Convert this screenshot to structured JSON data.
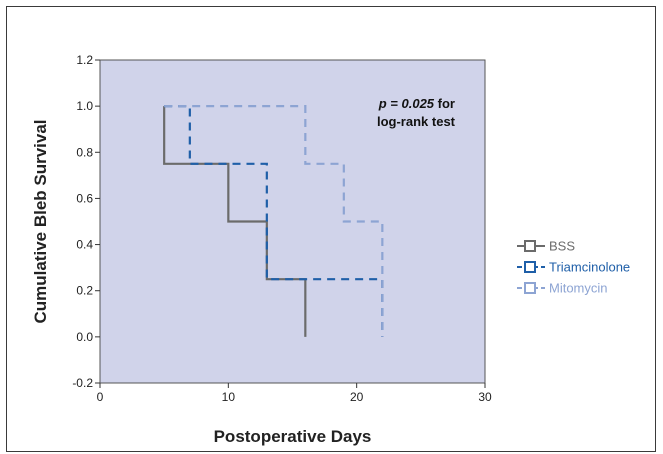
{
  "chart_data": {
    "type": "line",
    "step": true,
    "xlabel": "Postoperative Days",
    "ylabel": "Cumulative Bleb Survival",
    "xlim": [
      0,
      30
    ],
    "ylim": [
      -0.2,
      1.2
    ],
    "xticks": [
      "0",
      "10",
      "20",
      "30"
    ],
    "yticks": [
      "-0.2",
      "0.0",
      "0.2",
      "0.4",
      "0.6",
      "0.8",
      "1.0",
      "1.2"
    ],
    "xtick_values": [
      0,
      10,
      20,
      30
    ],
    "ytick_values": [
      -0.2,
      0.0,
      0.2,
      0.4,
      0.6,
      0.8,
      1.0,
      1.2
    ],
    "grid": false,
    "plot_background": "#d0d3ea",
    "legend_position": "right",
    "annotation": {
      "italic_part": "p = 0.025",
      "rest_line1": " for",
      "line2": "log-rank test"
    },
    "series": [
      {
        "name": "BSS",
        "color": "#6b6b6b",
        "dash": "solid",
        "x": [
          5,
          5,
          10,
          10,
          13,
          13,
          16,
          16
        ],
        "y": [
          1.0,
          0.75,
          0.75,
          0.5,
          0.5,
          0.25,
          0.25,
          0.0
        ]
      },
      {
        "name": "Triamcinolone",
        "color": "#1f5fa8",
        "dash": "dashed",
        "x": [
          5,
          7,
          7,
          13,
          13,
          22,
          22
        ],
        "y": [
          1.0,
          1.0,
          0.75,
          0.75,
          0.25,
          0.25,
          0.0
        ]
      },
      {
        "name": "Mitomycin",
        "color": "#8da4d3",
        "dash": "dashed",
        "x": [
          5,
          16,
          16,
          19,
          19,
          22,
          22
        ],
        "y": [
          1.0,
          1.0,
          0.75,
          0.75,
          0.5,
          0.5,
          0.0
        ]
      }
    ]
  }
}
